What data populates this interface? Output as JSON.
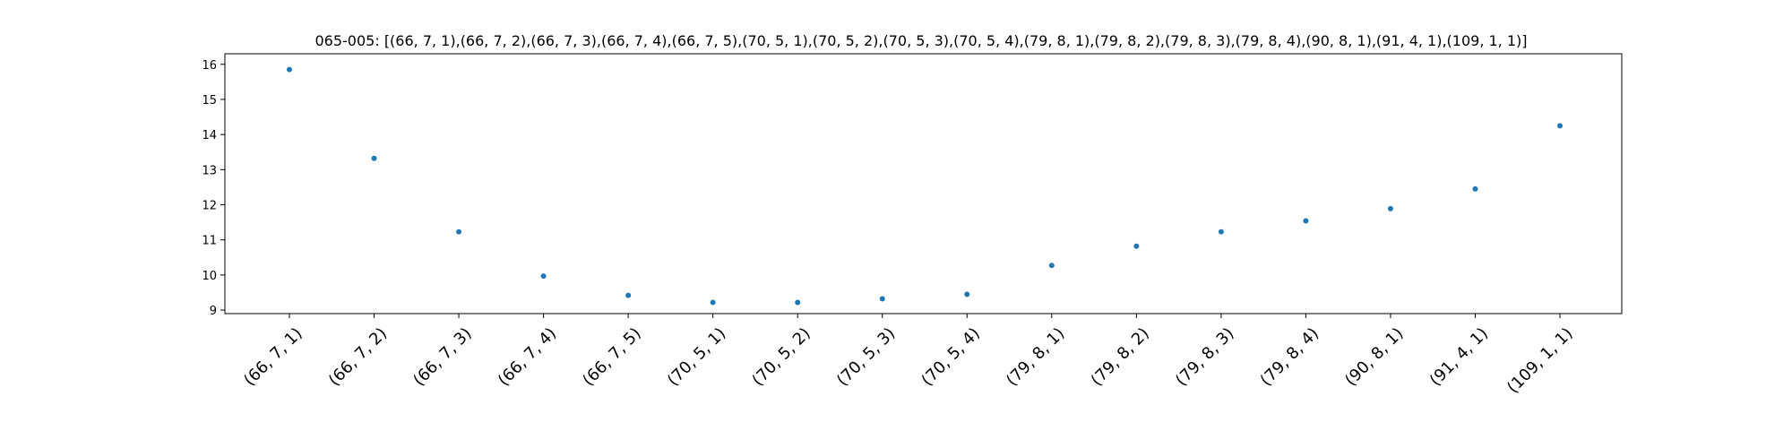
{
  "chart_data": {
    "type": "scatter",
    "title": "065-005: [(66, 7, 1),(66, 7, 2),(66, 7, 3),(66, 7, 4),(66, 7, 5),(70, 5, 1),(70, 5, 2),(70, 5, 3),(70, 5, 4),(79, 8, 1),(79, 8, 2),(79, 8, 3),(79, 8, 4),(90, 8, 1),(91, 4, 1),(109, 1, 1)]",
    "xlabel": "",
    "ylabel": "",
    "categories": [
      "(66, 7, 1)",
      "(66, 7, 2)",
      "(66, 7, 3)",
      "(66, 7, 4)",
      "(66, 7, 5)",
      "(70, 5, 1)",
      "(70, 5, 2)",
      "(70, 5, 3)",
      "(70, 5, 4)",
      "(79, 8, 1)",
      "(79, 8, 2)",
      "(79, 8, 3)",
      "(79, 8, 4)",
      "(90, 8, 1)",
      "(91, 4, 1)",
      "(109, 1, 1)"
    ],
    "values": [
      15.85,
      13.32,
      11.23,
      9.97,
      9.42,
      9.22,
      9.22,
      9.32,
      9.45,
      10.27,
      10.82,
      11.23,
      11.54,
      11.89,
      12.45,
      14.25
    ],
    "yticks": [
      9,
      10,
      11,
      12,
      13,
      14,
      15,
      16
    ],
    "ylim": [
      8.9,
      16.3
    ],
    "grid": false,
    "legend": "none",
    "color": "#1f77b4"
  }
}
